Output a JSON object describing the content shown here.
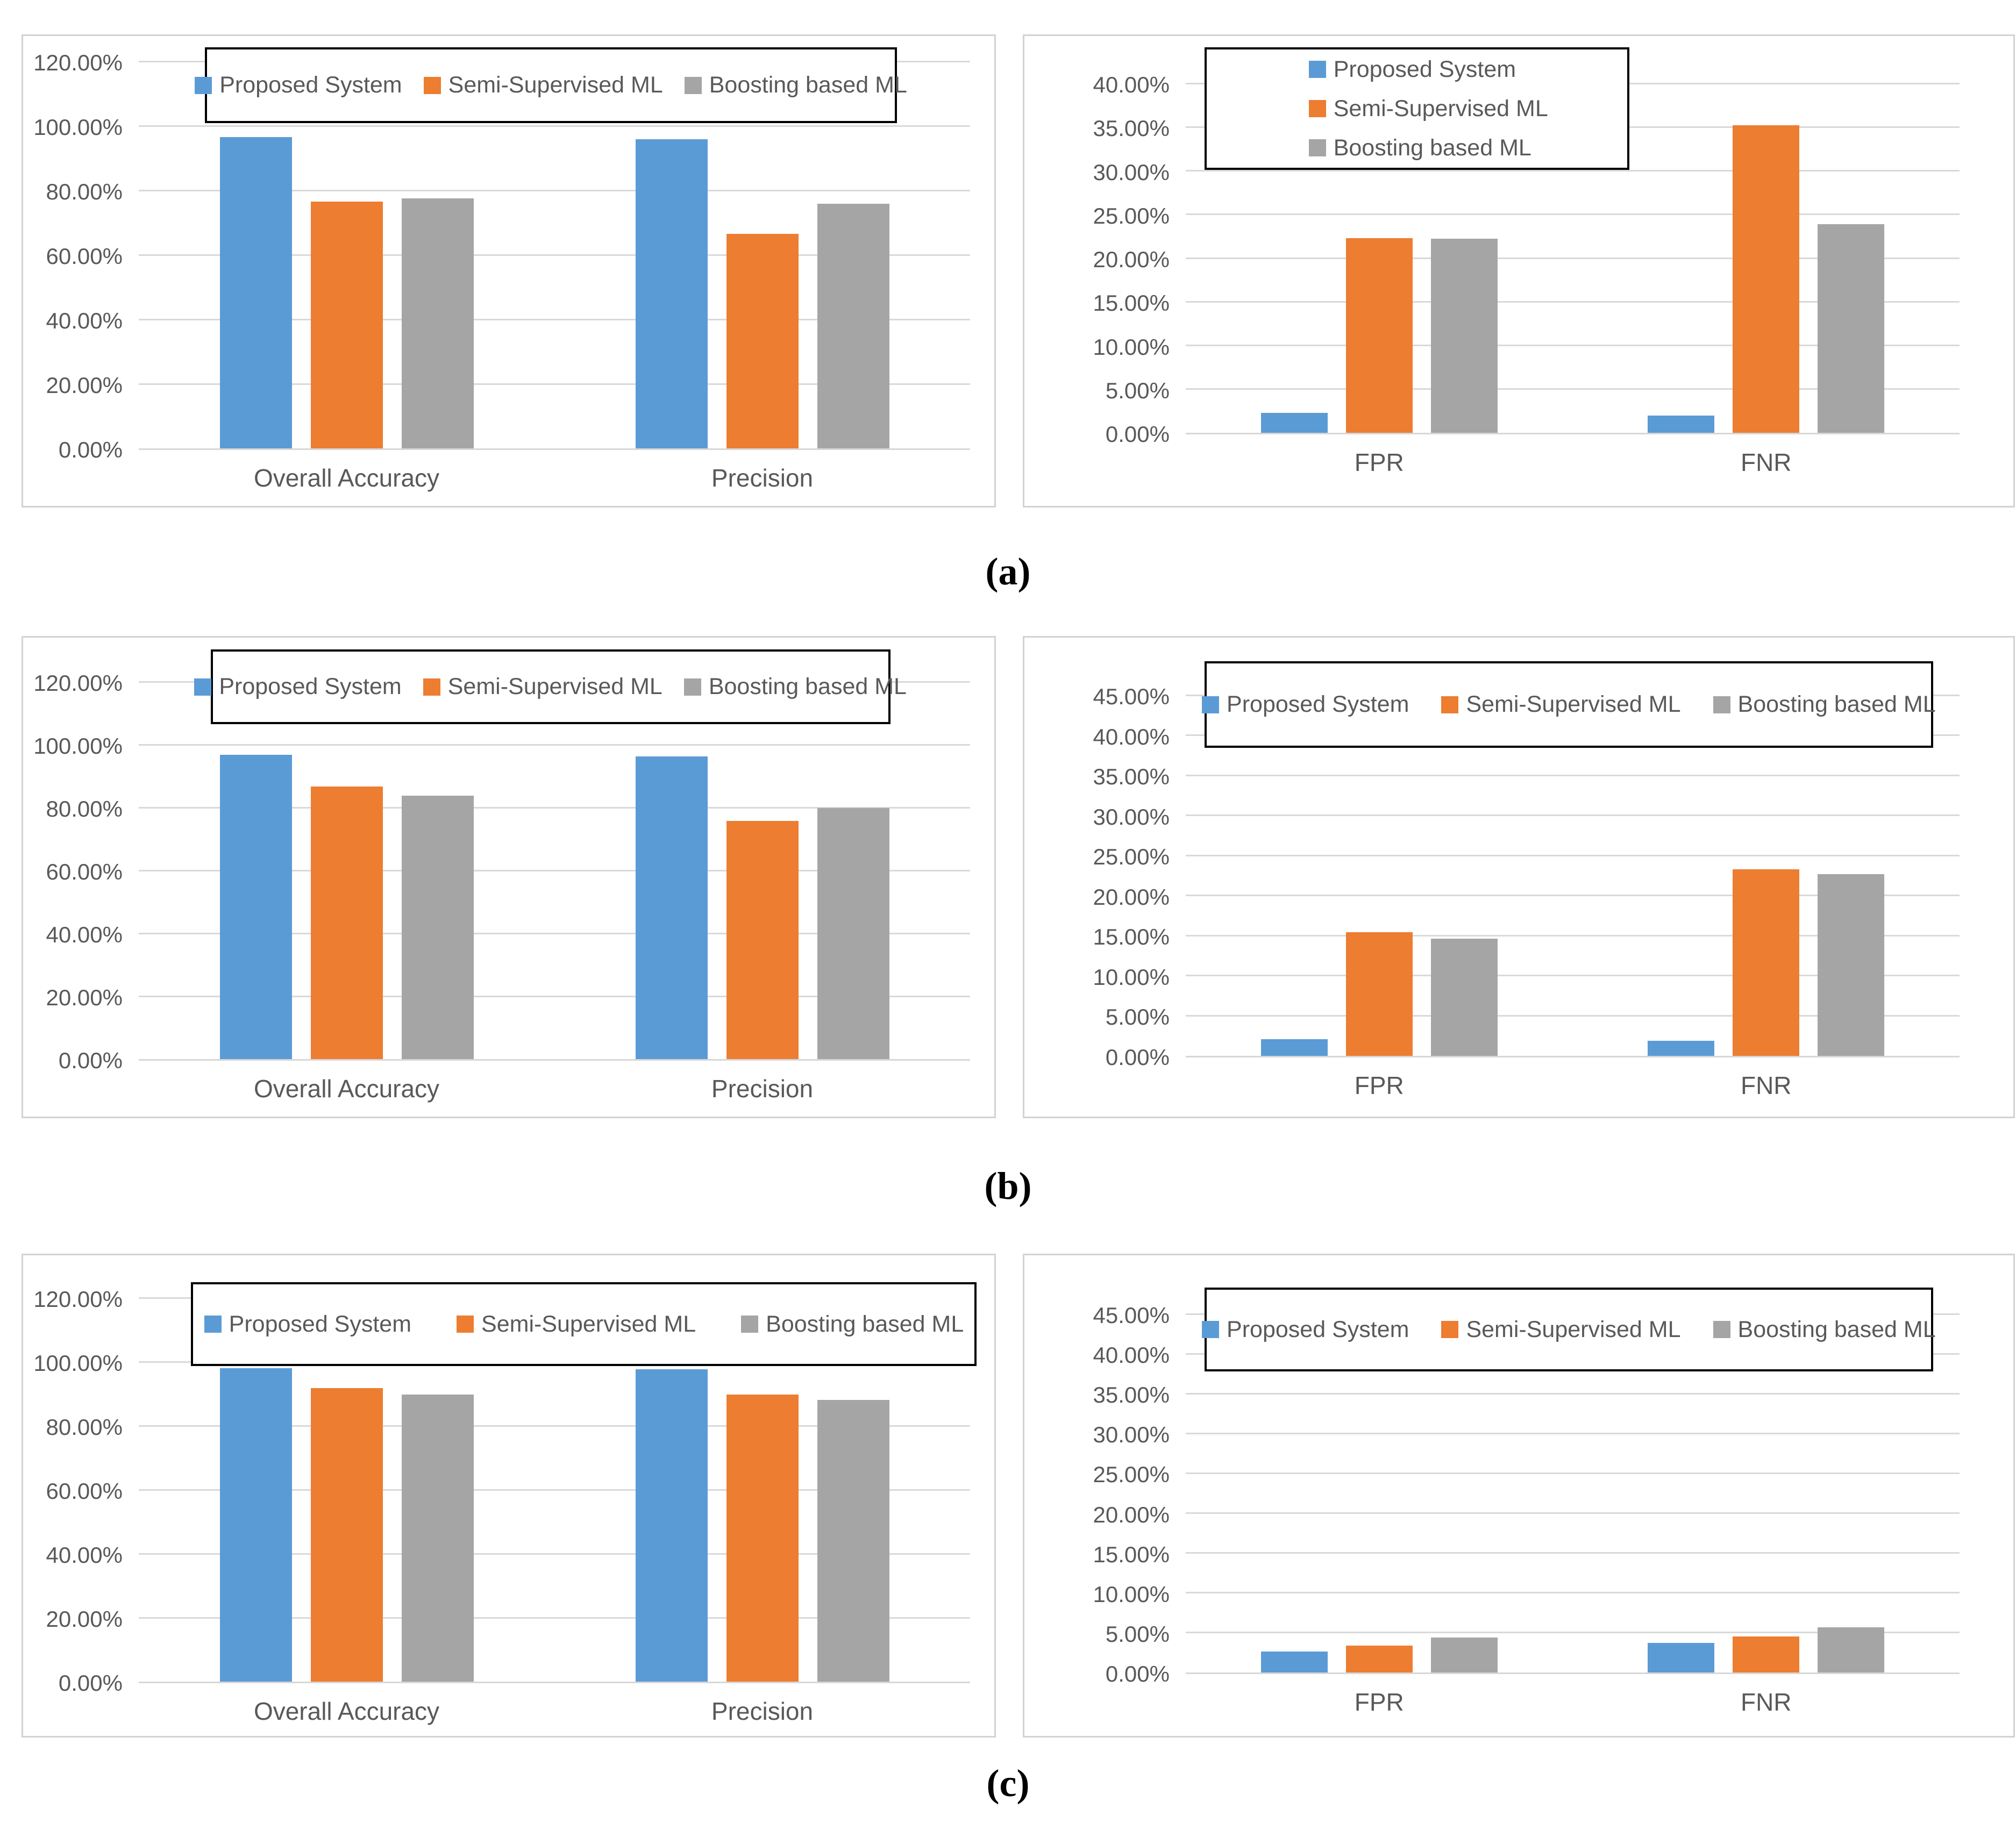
{
  "figure": {
    "subfigure_labels": {
      "a": "(a)",
      "b": "(b)",
      "c": "(c)"
    },
    "accent_colors": {
      "proposed_system_blue": "#5B9BD5",
      "semi_supervised_orange": "#ED7D31",
      "boosting_gray": "#A5A5A5",
      "gridline_gray": "#D9D9D9",
      "axis_text_gray": "#595959",
      "legend_border_black": "#000000"
    }
  },
  "chart_data": [
    {
      "id": "a-left",
      "type": "bar",
      "title": "",
      "xlabel": "",
      "ylabel": "",
      "categories": [
        "Overall Accuracy",
        "Precision"
      ],
      "series": [
        {
          "name": "Proposed System",
          "color": "#5B9BD5",
          "values": [
            96.5,
            95.8
          ]
        },
        {
          "name": "Semi-Supervised ML",
          "color": "#ED7D31",
          "values": [
            76.5,
            66.5
          ]
        },
        {
          "name": "Boosting based ML",
          "color": "#A5A5A5",
          "values": [
            77.5,
            75.9
          ]
        }
      ],
      "ylim": [
        0,
        120
      ],
      "ytick_step": 20,
      "yticks": [
        "0.00%",
        "20.00%",
        "40.00%",
        "60.00%",
        "80.00%",
        "100.00%",
        "120.00%"
      ],
      "grid": true,
      "legend_position": "top-horizontal"
    },
    {
      "id": "a-right",
      "type": "bar",
      "title": "",
      "xlabel": "",
      "ylabel": "",
      "categories": [
        "FPR",
        "FNR"
      ],
      "series": [
        {
          "name": "Proposed System",
          "color": "#5B9BD5",
          "values": [
            2.3,
            2.0
          ]
        },
        {
          "name": "Semi-Supervised ML",
          "color": "#ED7D31",
          "values": [
            22.3,
            35.2
          ]
        },
        {
          "name": "Boosting based ML",
          "color": "#A5A5A5",
          "values": [
            22.2,
            23.9
          ]
        }
      ],
      "ylim": [
        0,
        40
      ],
      "ytick_step": 5,
      "yticks": [
        "0.00%",
        "5.00%",
        "10.00%",
        "15.00%",
        "20.00%",
        "25.00%",
        "30.00%",
        "35.00%",
        "40.00%"
      ],
      "grid": true,
      "legend_position": "top-left-vertical"
    },
    {
      "id": "b-left",
      "type": "bar",
      "title": "",
      "xlabel": "",
      "ylabel": "",
      "categories": [
        "Overall Accuracy",
        "Precision"
      ],
      "series": [
        {
          "name": "Proposed System",
          "color": "#5B9BD5",
          "values": [
            96.8,
            96.2
          ]
        },
        {
          "name": "Semi-Supervised ML",
          "color": "#ED7D31",
          "values": [
            86.7,
            75.8
          ]
        },
        {
          "name": "Boosting based ML",
          "color": "#A5A5A5",
          "values": [
            83.8,
            79.8
          ]
        }
      ],
      "ylim": [
        0,
        120
      ],
      "ytick_step": 20,
      "yticks": [
        "0.00%",
        "20.00%",
        "40.00%",
        "60.00%",
        "80.00%",
        "100.00%",
        "120.00%"
      ],
      "grid": true,
      "legend_position": "top-horizontal"
    },
    {
      "id": "b-right",
      "type": "bar",
      "title": "",
      "xlabel": "",
      "ylabel": "",
      "categories": [
        "FPR",
        "FNR"
      ],
      "series": [
        {
          "name": "Proposed System",
          "color": "#5B9BD5",
          "values": [
            2.1,
            1.9
          ]
        },
        {
          "name": "Semi-Supervised ML",
          "color": "#ED7D31",
          "values": [
            15.4,
            23.3
          ]
        },
        {
          "name": "Boosting based ML",
          "color": "#A5A5A5",
          "values": [
            14.6,
            22.7
          ]
        }
      ],
      "ylim": [
        0,
        45
      ],
      "ytick_step": 5,
      "yticks": [
        "0.00%",
        "5.00%",
        "10.00%",
        "15.00%",
        "20.00%",
        "25.00%",
        "30.00%",
        "35.00%",
        "40.00%",
        "45.00%"
      ],
      "grid": true,
      "legend_position": "top-horizontal"
    },
    {
      "id": "c-left",
      "type": "bar",
      "title": "",
      "xlabel": "",
      "ylabel": "",
      "categories": [
        "Overall Accuracy",
        "Precision"
      ],
      "series": [
        {
          "name": "Proposed System",
          "color": "#5B9BD5",
          "values": [
            98.0,
            97.7
          ]
        },
        {
          "name": "Semi-Supervised ML",
          "color": "#ED7D31",
          "values": [
            91.8,
            89.8
          ]
        },
        {
          "name": "Boosting based ML",
          "color": "#A5A5A5",
          "values": [
            89.8,
            88.0
          ]
        }
      ],
      "ylim": [
        0,
        120
      ],
      "ytick_step": 20,
      "yticks": [
        "0.00%",
        "20.00%",
        "40.00%",
        "60.00%",
        "80.00%",
        "100.00%",
        "120.00%"
      ],
      "grid": true,
      "legend_position": "top-horizontal"
    },
    {
      "id": "c-right",
      "type": "bar",
      "title": "",
      "xlabel": "",
      "ylabel": "",
      "categories": [
        "FPR",
        "FNR"
      ],
      "series": [
        {
          "name": "Proposed System",
          "color": "#5B9BD5",
          "values": [
            2.6,
            3.7
          ]
        },
        {
          "name": "Semi-Supervised ML",
          "color": "#ED7D31",
          "values": [
            3.4,
            4.5
          ]
        },
        {
          "name": "Boosting based ML",
          "color": "#A5A5A5",
          "values": [
            4.4,
            5.7
          ]
        }
      ],
      "ylim": [
        0,
        45
      ],
      "ytick_step": 5,
      "yticks": [
        "0.00%",
        "5.00%",
        "10.00%",
        "15.00%",
        "20.00%",
        "25.00%",
        "30.00%",
        "35.00%",
        "40.00%",
        "45.00%"
      ],
      "grid": true,
      "legend_position": "top-horizontal"
    }
  ]
}
